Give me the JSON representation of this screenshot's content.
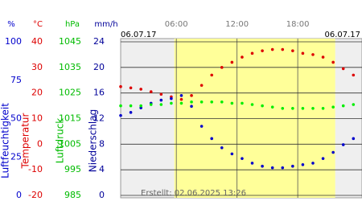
{
  "chart_data": {
    "type": "scatter",
    "date_left": "06.07.17",
    "date_right": "06.07.17",
    "footer": "Erstellt: 02.06.2025 13:26",
    "xlim": [
      0.5,
      24.35
    ],
    "xticks": [
      {
        "value": 6,
        "label": "06:00"
      },
      {
        "value": 12,
        "label": "12:00"
      },
      {
        "value": 18,
        "label": "18:00"
      }
    ],
    "daylight": [
      5.8,
      21.7
    ],
    "grid": true,
    "y_axes": [
      {
        "unit": "%",
        "label": "Luftfeuchtigkeit",
        "color": "#0000cc",
        "lim": [
          0,
          100
        ],
        "ticks": [
          0,
          25,
          50,
          75,
          100
        ]
      },
      {
        "unit": "°C",
        "label": "Temperatur",
        "color": "#dd0000",
        "lim": [
          -20,
          40
        ],
        "ticks": [
          -20,
          -10,
          0,
          10,
          20,
          30,
          40
        ]
      },
      {
        "unit": "hPa",
        "label": "Luftdruck",
        "color": "#00bb00",
        "lim": [
          985,
          1045
        ],
        "ticks": [
          985,
          995,
          1005,
          1015,
          1025,
          1035,
          1045
        ]
      },
      {
        "unit": "mm/h",
        "label": "Niederschlag",
        "color": "#000099",
        "lim": [
          0,
          24
        ],
        "ticks": [
          0,
          4,
          8,
          12,
          16,
          20,
          24
        ]
      }
    ],
    "x": [
      0.5,
      1.5,
      2.5,
      3.5,
      4.5,
      5.5,
      6.5,
      7.5,
      8.5,
      9.5,
      10.5,
      11.5,
      12.5,
      13.5,
      14.5,
      15.5,
      16.5,
      17.5,
      18.5,
      19.5,
      20.5,
      21.5,
      22.5,
      23.5
    ],
    "series": [
      {
        "axis": 1,
        "color": "#dd0000",
        "values": [
          22.5,
          22,
          21.5,
          20.5,
          19.5,
          18.5,
          17.5,
          19,
          23,
          27,
          30,
          32,
          34,
          35.5,
          36.5,
          37,
          37,
          36.5,
          35.5,
          35,
          34,
          32,
          29.5,
          27
        ]
      },
      {
        "axis": 0,
        "color": "#0000cc",
        "values": [
          52,
          54,
          57,
          60,
          62,
          63,
          65,
          58,
          45,
          37,
          31,
          27,
          24,
          21,
          19,
          18,
          18,
          19,
          20,
          21,
          24,
          28,
          33,
          37
        ]
      },
      {
        "axis": 2,
        "color": "#00ee00",
        "values": [
          1020,
          1020,
          1020,
          1020.5,
          1020.5,
          1021,
          1021,
          1021.5,
          1021.5,
          1021.5,
          1021.5,
          1021,
          1021,
          1020.5,
          1020,
          1019.5,
          1019,
          1019,
          1019,
          1019,
          1019,
          1019.5,
          1020,
          1020.5
        ]
      }
    ]
  }
}
